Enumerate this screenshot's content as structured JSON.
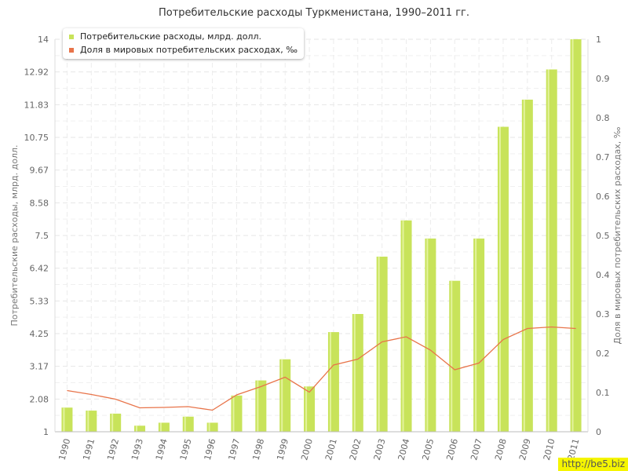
{
  "chart_data": {
    "type": "bar",
    "title": "Потребительские расходы Туркменистана, 1990–2011 гг.",
    "categories": [
      "1990",
      "1991",
      "1992",
      "1993",
      "1994",
      "1995",
      "1996",
      "1997",
      "1998",
      "1999",
      "2000",
      "2001",
      "2002",
      "2003",
      "2004",
      "2005",
      "2006",
      "2007",
      "2008",
      "2009",
      "2010",
      "2011"
    ],
    "series": [
      {
        "name": "Потребительские расходы, млрд. долл.",
        "type": "bar",
        "axis": "left",
        "color": "#c8e35a",
        "values": [
          1.8,
          1.7,
          1.6,
          1.2,
          1.3,
          1.5,
          1.3,
          2.2,
          2.7,
          3.4,
          2.5,
          4.3,
          4.9,
          6.8,
          8.0,
          7.4,
          6.0,
          7.4,
          11.1,
          12.0,
          13.0,
          14.0
        ]
      },
      {
        "name": "Доля в мировых потребительских расходах, ‰",
        "type": "line",
        "axis": "right",
        "color": "#e8744a",
        "values": [
          0.105,
          0.095,
          0.083,
          0.061,
          0.062,
          0.064,
          0.055,
          0.094,
          0.115,
          0.139,
          0.101,
          0.17,
          0.185,
          0.229,
          0.242,
          0.208,
          0.158,
          0.175,
          0.235,
          0.263,
          0.267,
          0.263
        ]
      }
    ],
    "ylabel": "Потребительские расходы, млрд. долл.",
    "y2label": "Доля в мировых потребительских расходах, ‰",
    "ylim": [
      1,
      14
    ],
    "y2lim": [
      0,
      1
    ],
    "yticks": [
      "1",
      "2.08",
      "3.17",
      "4.25",
      "5.33",
      "6.42",
      "7.5",
      "8.58",
      "9.67",
      "10.75",
      "11.83",
      "12.92",
      "14"
    ],
    "y2ticks": [
      "0",
      "0.1",
      "0.2",
      "0.3",
      "0.4",
      "0.5",
      "0.6",
      "0.7",
      "0.8",
      "0.9",
      "1"
    ],
    "grid": true,
    "legend_position": "top-left"
  },
  "watermark": "http://be5.biz"
}
